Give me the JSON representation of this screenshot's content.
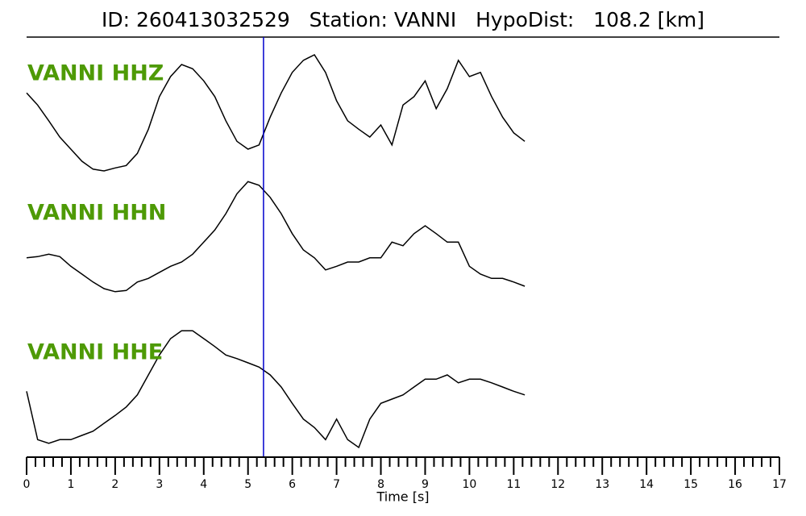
{
  "chart_data": {
    "type": "seismogram",
    "title": "ID: 260413032529   Station: VANNI   HypoDist:   108.2 [km]",
    "xlabel": "Time [s]",
    "x": [
      0,
      0.25,
      0.5,
      0.75,
      1,
      1.25,
      1.5,
      1.75,
      2,
      2.25,
      2.5,
      2.75,
      3,
      3.25,
      3.5,
      3.75,
      4,
      4.25,
      4.5,
      4.75,
      5,
      5.25,
      5.5,
      5.75,
      6,
      6.25,
      6.5,
      6.75,
      7,
      7.25,
      7.5,
      7.75,
      8,
      8.25,
      8.5,
      8.75,
      9,
      9.25,
      9.5,
      9.75,
      10,
      10.25,
      10.5,
      10.75,
      11,
      11.25
    ],
    "series": [
      {
        "name": "VANNI HHZ",
        "color": "#000000",
        "values": [
          0.33,
          0.13,
          -0.13,
          -0.4,
          -0.6,
          -0.8,
          -0.93,
          -0.96,
          -0.91,
          -0.87,
          -0.67,
          -0.27,
          0.27,
          0.6,
          0.8,
          0.73,
          0.53,
          0.27,
          -0.13,
          -0.47,
          -0.6,
          -0.53,
          -0.07,
          0.33,
          0.67,
          0.87,
          0.96,
          0.67,
          0.2,
          -0.13,
          -0.27,
          -0.4,
          -0.2,
          -0.53,
          0.13,
          0.27,
          0.53,
          0.07,
          0.4,
          0.87,
          0.6,
          0.67,
          0.27,
          -0.07,
          -0.33,
          -0.47
        ]
      },
      {
        "name": "VANNI HHN",
        "color": "#000000",
        "values": [
          -0.33,
          -0.31,
          -0.27,
          -0.31,
          -0.47,
          -0.6,
          -0.73,
          -0.84,
          -0.89,
          -0.87,
          -0.73,
          -0.67,
          -0.57,
          -0.47,
          -0.4,
          -0.27,
          -0.07,
          0.13,
          0.4,
          0.73,
          0.93,
          0.87,
          0.67,
          0.4,
          0.07,
          -0.2,
          -0.33,
          -0.53,
          -0.47,
          -0.4,
          -0.4,
          -0.33,
          -0.33,
          -0.07,
          -0.13,
          0.07,
          0.2,
          0.07,
          -0.07,
          -0.07,
          -0.47,
          -0.6,
          -0.67,
          -0.67,
          -0.73,
          -0.8
        ]
      },
      {
        "name": "VANNI HHE",
        "color": "#000000",
        "values": [
          -0.07,
          -0.87,
          -0.93,
          -0.87,
          -0.87,
          -0.8,
          -0.73,
          -0.6,
          -0.47,
          -0.33,
          -0.13,
          0.2,
          0.53,
          0.8,
          0.93,
          0.93,
          0.8,
          0.67,
          0.53,
          0.47,
          0.4,
          0.33,
          0.2,
          0,
          -0.27,
          -0.53,
          -0.67,
          -0.87,
          -0.53,
          -0.87,
          -1,
          -0.53,
          -0.27,
          -0.2,
          -0.13,
          0,
          0.13,
          0.13,
          0.2,
          0.07,
          0.13,
          0.13,
          0.07,
          0,
          -0.07,
          -0.13
        ]
      }
    ],
    "label_color": "#4e9a06",
    "pick_x": 5.35,
    "pick_color": "#0000cc",
    "xlim": [
      0,
      17
    ],
    "xticks": [
      0,
      1,
      2,
      3,
      4,
      5,
      6,
      7,
      8,
      9,
      10,
      11,
      12,
      13,
      14,
      15,
      16,
      17
    ],
    "minor_per_major": 5
  }
}
